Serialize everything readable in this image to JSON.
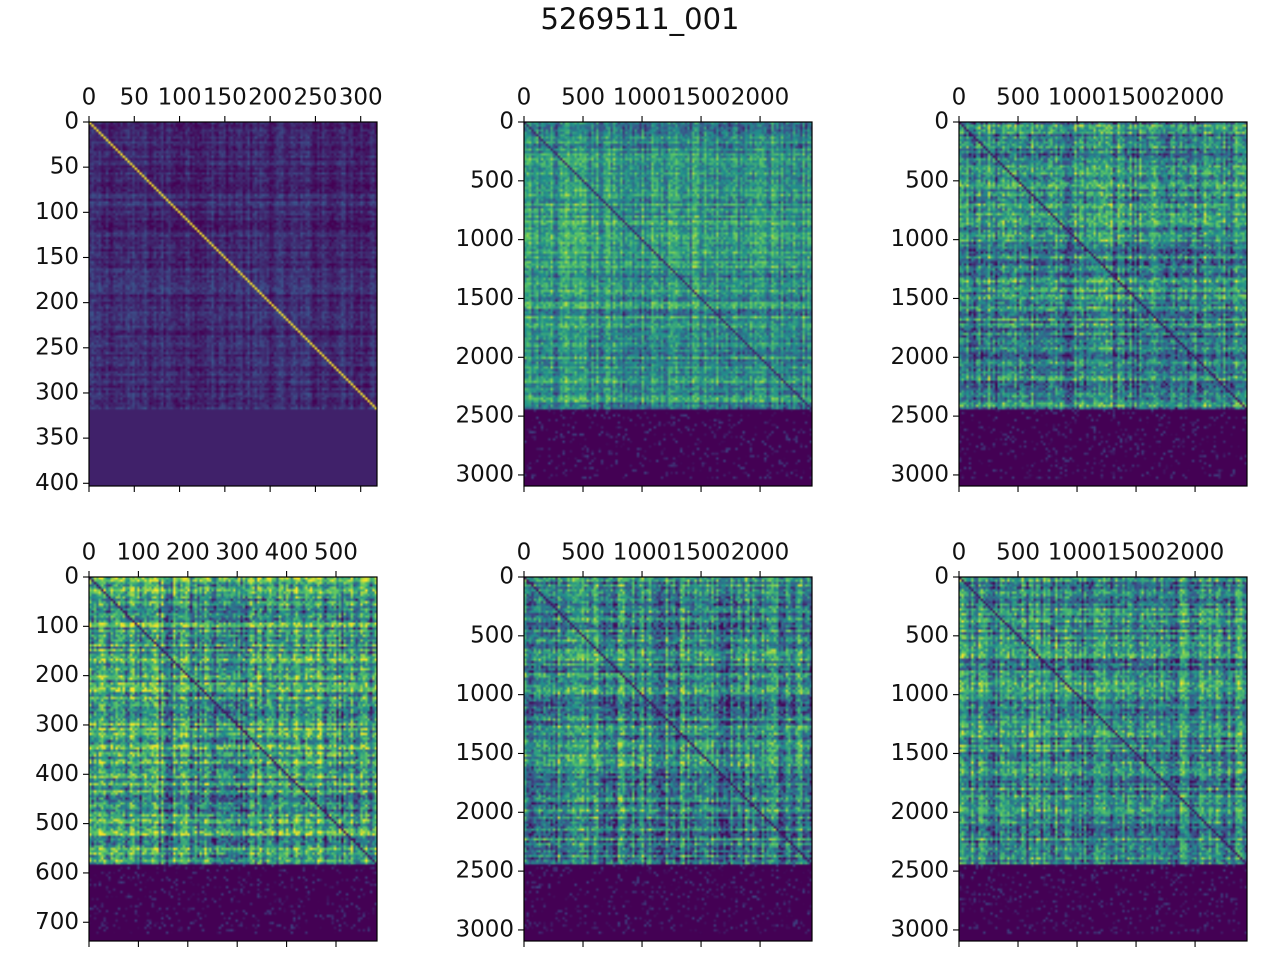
{
  "title": "5269511_001",
  "colormap": [
    "#440154",
    "#3b528b",
    "#21918c",
    "#5ec962",
    "#fde725"
  ],
  "chart_data": [
    {
      "type": "heatmap",
      "name": "panel-1",
      "matrix_cols": 318,
      "matrix_rows": 318,
      "xlim": [
        0,
        318
      ],
      "ylim": [
        403,
        0
      ],
      "xticks": [
        0,
        50,
        100,
        150,
        200,
        250,
        300
      ],
      "yticks": [
        0,
        50,
        100,
        150,
        200,
        250,
        300,
        350,
        400
      ],
      "base_level": 0.12,
      "noise": 0.12,
      "diagonal_level": 1.0,
      "padding_level": 0.1
    },
    {
      "type": "heatmap",
      "name": "panel-2",
      "matrix_cols": 2440,
      "matrix_rows": 2440,
      "xlim": [
        0,
        2440
      ],
      "ylim": [
        3094,
        0
      ],
      "xticks": [
        0,
        500,
        1000,
        1500,
        2000
      ],
      "yticks": [
        0,
        500,
        1000,
        1500,
        2000,
        2500,
        3000
      ],
      "base_level": 0.5,
      "noise": 0.3,
      "diagonal_level": 0.1,
      "padding_level": 0.0
    },
    {
      "type": "heatmap",
      "name": "panel-3",
      "matrix_cols": 2440,
      "matrix_rows": 2440,
      "xlim": [
        0,
        2440
      ],
      "ylim": [
        3094,
        0
      ],
      "xticks": [
        0,
        500,
        1000,
        1500,
        2000
      ],
      "yticks": [
        0,
        500,
        1000,
        1500,
        2000,
        2500,
        3000
      ],
      "base_level": 0.45,
      "noise": 0.4,
      "diagonal_level": 0.05,
      "padding_level": 0.0
    },
    {
      "type": "heatmap",
      "name": "panel-4",
      "matrix_cols": 583,
      "matrix_rows": 583,
      "xlim": [
        0,
        583
      ],
      "ylim": [
        738,
        0
      ],
      "xticks": [
        0,
        100,
        200,
        300,
        400,
        500
      ],
      "yticks": [
        0,
        100,
        200,
        300,
        400,
        500,
        600,
        700
      ],
      "base_level": 0.55,
      "noise": 0.45,
      "diagonal_level": 0.05,
      "padding_level": 0.0
    },
    {
      "type": "heatmap",
      "name": "panel-5",
      "matrix_cols": 2440,
      "matrix_rows": 2440,
      "xlim": [
        0,
        2440
      ],
      "ylim": [
        3094,
        0
      ],
      "xticks": [
        0,
        500,
        1000,
        1500,
        2000
      ],
      "yticks": [
        0,
        500,
        1000,
        1500,
        2000,
        2500,
        3000
      ],
      "base_level": 0.45,
      "noise": 0.4,
      "diagonal_level": 0.05,
      "padding_level": 0.0
    },
    {
      "type": "heatmap",
      "name": "panel-6",
      "matrix_cols": 2440,
      "matrix_rows": 2440,
      "xlim": [
        0,
        2440
      ],
      "ylim": [
        3094,
        0
      ],
      "xticks": [
        0,
        500,
        1000,
        1500,
        2000
      ],
      "yticks": [
        0,
        500,
        1000,
        1500,
        2000,
        2500,
        3000
      ],
      "base_level": 0.45,
      "noise": 0.4,
      "diagonal_level": 0.05,
      "padding_level": 0.0
    }
  ]
}
